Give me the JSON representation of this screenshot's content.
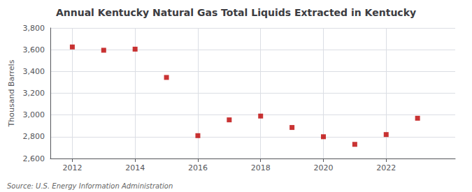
{
  "chart_data": {
    "type": "scatter",
    "title": "Annual Kentucky Natural Gas Total Liquids Extracted in Kentucky",
    "ylabel": "Thousand Barrels",
    "source": "Source: U.S. Energy Information Administration",
    "x": [
      2012,
      2013,
      2014,
      2015,
      2016,
      2017,
      2018,
      2019,
      2020,
      2021,
      2022,
      2023
    ],
    "values": [
      3625,
      3595,
      3605,
      3345,
      2810,
      2955,
      2990,
      2885,
      2800,
      2730,
      2820,
      2970
    ],
    "color": "#bb0000",
    "marker": "square",
    "xlim": [
      2011.3,
      2024.2
    ],
    "xticks": [
      2012,
      2014,
      2016,
      2018,
      2020,
      2022
    ],
    "ylim": [
      2600,
      3800
    ],
    "yticks": [
      {
        "value": 2600,
        "label": "2,600"
      },
      {
        "value": 2800,
        "label": "2,800"
      },
      {
        "value": 3000,
        "label": "3,000"
      },
      {
        "value": 3200,
        "label": "3,200"
      },
      {
        "value": 3400,
        "label": "3,400"
      },
      {
        "value": 3600,
        "label": "3,600"
      },
      {
        "value": 3800,
        "label": "3,800"
      }
    ],
    "grid": true
  }
}
